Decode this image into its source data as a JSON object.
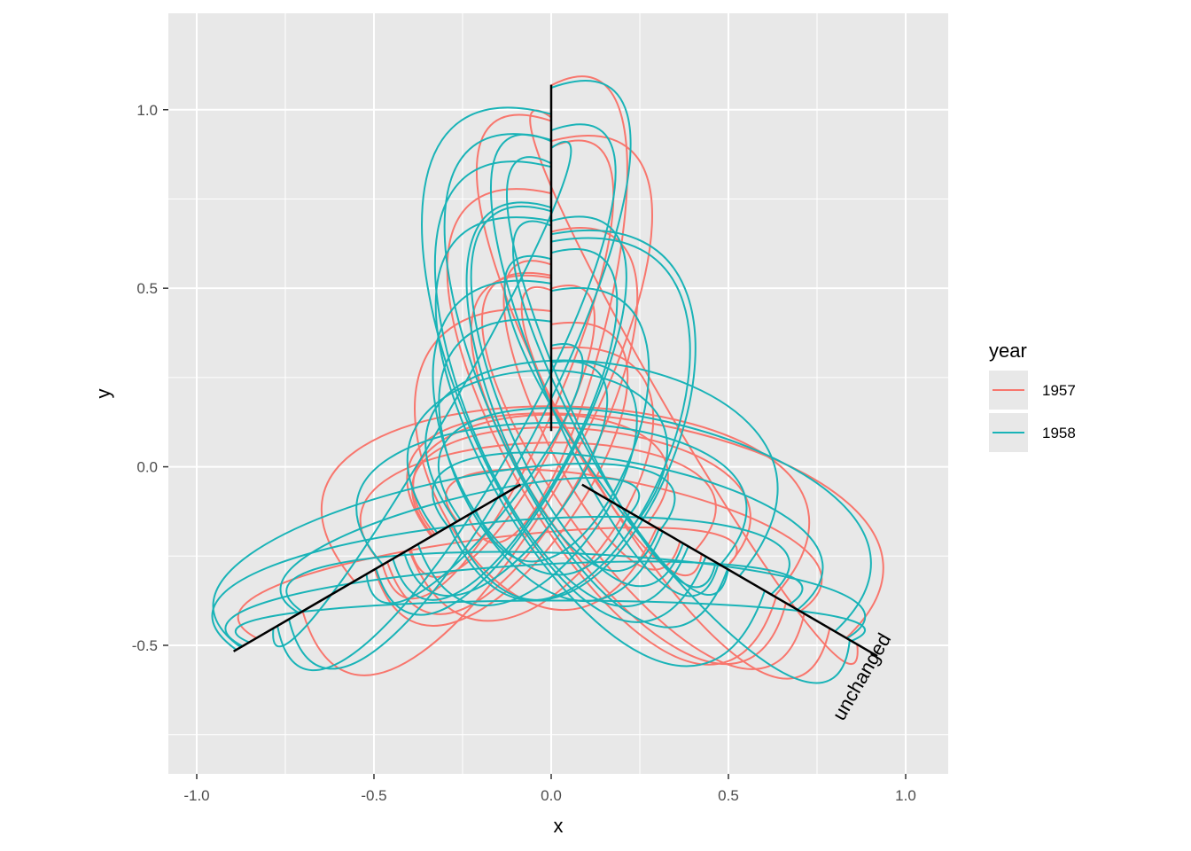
{
  "chart_data": {
    "type": "line",
    "subtype": "ternary-style radial hysteresis curves",
    "xlabel": "x",
    "ylabel": "y",
    "xlim": [
      -1.08,
      1.12
    ],
    "ylim": [
      -0.86,
      1.27
    ],
    "x_ticks": [
      -1.0,
      -0.5,
      0.0,
      0.5,
      1.0
    ],
    "x_tick_labels": [
      "-1.0",
      "-0.5",
      "0.0",
      "0.5",
      "1.0"
    ],
    "y_ticks": [
      -0.5,
      0.0,
      0.5,
      1.0
    ],
    "y_tick_labels": [
      "-0.5",
      "0.0",
      "0.5",
      "1.0"
    ],
    "grid": true,
    "background": "#e8e8e8",
    "legend": {
      "title": "year",
      "position": "right",
      "entries": [
        {
          "label": "1957",
          "color": "#f8766d"
        },
        {
          "label": "1958",
          "color": "#19b3b7"
        }
      ]
    },
    "axes_lines": {
      "color": "#000000",
      "segments": [
        {
          "from": [
            0.0,
            0.1
          ],
          "to": [
            0.0,
            1.07
          ]
        },
        {
          "from": [
            -0.087,
            -0.05
          ],
          "to": [
            -0.896,
            -0.517
          ]
        },
        {
          "from": [
            0.087,
            -0.05
          ],
          "to": [
            0.92,
            -0.53
          ]
        }
      ]
    },
    "annotation": {
      "text": "unchanged",
      "x": 0.96,
      "y": -0.48,
      "angle": -60
    },
    "series": [
      {
        "name": "1957",
        "color": "#f8766d",
        "curve_count": 22
      },
      {
        "name": "1958",
        "color": "#19b3b7",
        "curve_count": 34
      }
    ]
  }
}
